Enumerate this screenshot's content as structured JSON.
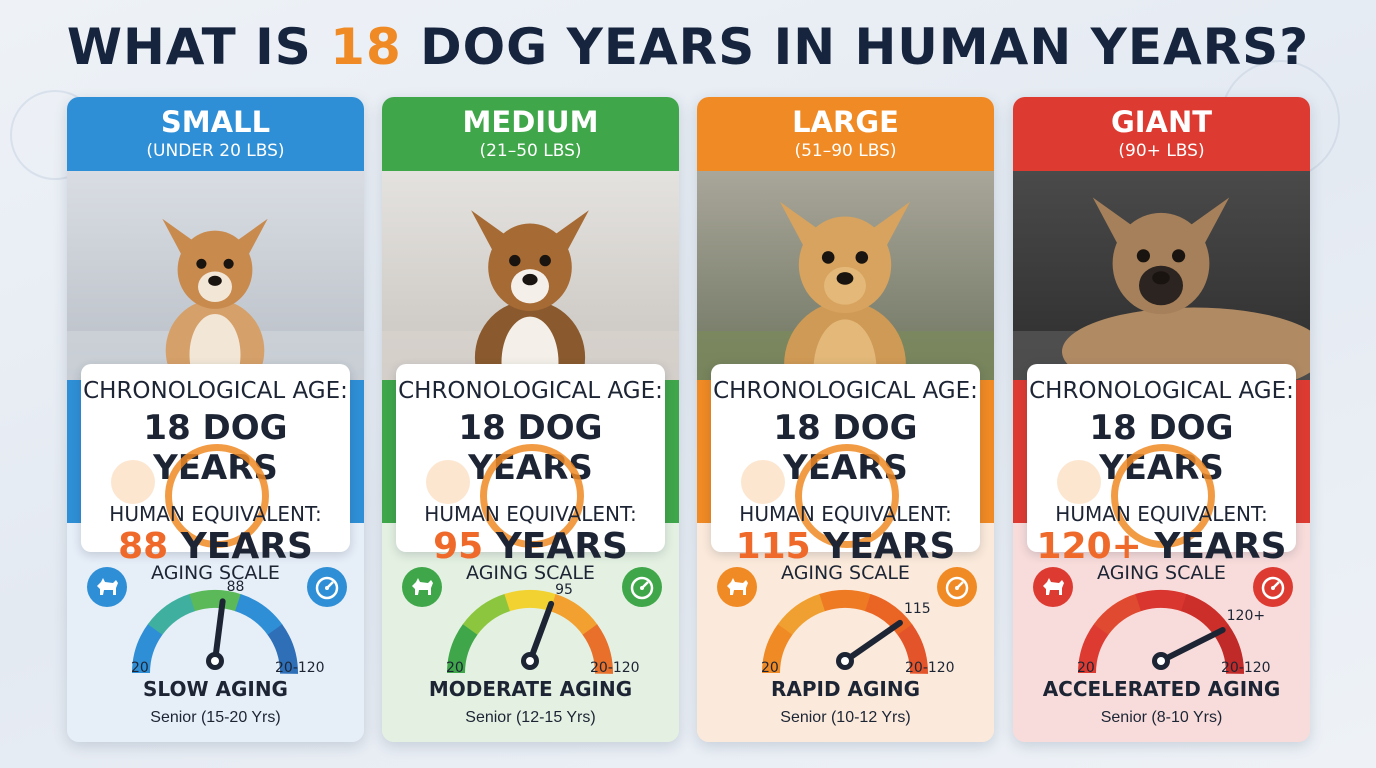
{
  "title": {
    "prefix": "WHAT IS ",
    "highlight": "18",
    "suffix": " DOG YEARS IN HUMAN YEARS?"
  },
  "labels": {
    "chronological": "CHRONOLOGICAL AGE:",
    "human": "HUMAN EQUIVALENT:",
    "aging_scale": "AGING SCALE",
    "years_suffix": " YEARS"
  },
  "cards": [
    {
      "name": "SMALL",
      "range": "(UNDER 20 LBS)",
      "chrono_value": "18 DOG YEARS",
      "human_number": "88",
      "gauge_min": "20",
      "gauge_max": "20-120",
      "gauge_value_label": "88",
      "gauge_value": 88,
      "rate": "SLOW AGING",
      "senior": "Senior (15-20 Yrs)",
      "accent": "#2f8fd6",
      "band": "#2f8fd6",
      "lower_bg": "#e6eef8",
      "badge": "#2f8fd6"
    },
    {
      "name": "MEDIUM",
      "range": "(21–50 LBS)",
      "chrono_value": "18 DOG YEARS",
      "human_number": "95",
      "gauge_min": "20",
      "gauge_max": "20-120",
      "gauge_value_label": "95",
      "gauge_value": 95,
      "rate": "MODERATE AGING",
      "senior": "Senior (12-15 Yrs)",
      "accent": "#3fa64a",
      "band": "#3fa64a",
      "lower_bg": "#e4f1e2",
      "badge": "#3fa64a"
    },
    {
      "name": "LARGE",
      "range": "(51–90 LBS)",
      "chrono_value": "18 DOG YEARS",
      "human_number": "115",
      "gauge_min": "20",
      "gauge_max": "20-120",
      "gauge_value_label": "115",
      "gauge_value": 115,
      "rate": "RAPID AGING",
      "senior": "Senior (10-12 Yrs)",
      "accent": "#f08a24",
      "band": "#f08a24",
      "lower_bg": "#fbeadb",
      "badge": "#f08a24"
    },
    {
      "name": "GIANT",
      "range": "(90+ LBS)",
      "chrono_value": "18 DOG YEARS",
      "human_number": "120+",
      "gauge_min": "20",
      "gauge_max": "20-120",
      "gauge_value_label": "120+",
      "gauge_value": 120,
      "rate": "ACCELERATED AGING",
      "senior": "Senior (8-10 Yrs)",
      "accent": "#dd3b32",
      "band": "#dd3b32",
      "lower_bg": "#f8dcdb",
      "badge": "#dd3b32"
    }
  ],
  "icons": {
    "left_badge": "dog-icon",
    "right_badge": "speedometer-icon"
  }
}
